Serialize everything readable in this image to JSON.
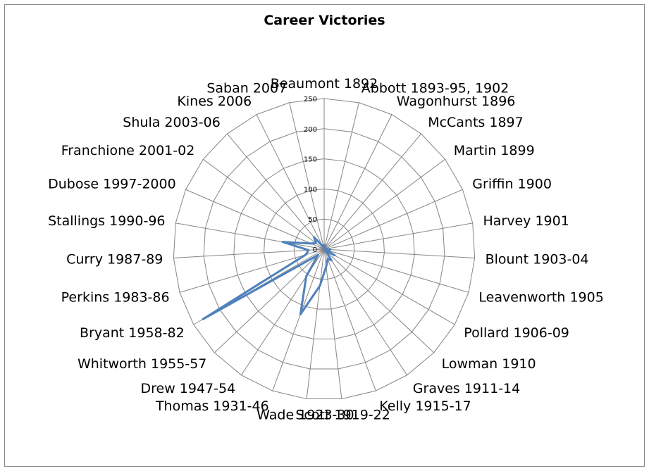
{
  "chart_data": {
    "type": "radar",
    "title": "Career Victories",
    "categories": [
      "Beaumont 1892",
      "Abbott 1893-95, 1902",
      "Wagonhurst 1896",
      "McCants 1897",
      "Martin 1899",
      "Griffin 1900",
      "Harvey 1901",
      "Blount 1903-04",
      "Leavenworth 1905",
      "Pollard 1906-09",
      "Lowman 1910",
      "Graves 1911-14",
      "Kelly 1915-17",
      "Scott 1919-22",
      "Wade 1923-30",
      "Thomas 1931-46",
      "Drew 1947-54",
      "Whitworth 1955-57",
      "Bryant 1958-82",
      "Perkins 1983-86",
      "Curry 1987-89",
      "Stallings 1990-96",
      "Dubose 1997-2000",
      "Franchione 2001-02",
      "Shula 2003-06",
      "Kines 2006",
      "Saban 2007"
    ],
    "series": [
      {
        "color": "#4f81bd",
        "values": [
          2,
          7,
          2,
          2,
          3,
          3,
          2,
          10,
          4,
          20,
          3,
          22,
          17,
          29,
          61,
          115,
          54,
          14,
          232,
          32,
          26,
          70,
          24,
          17,
          26,
          6,
          7
        ]
      }
    ],
    "rlim": [
      0,
      250
    ],
    "ticks": [
      "0",
      "50",
      "100",
      "150",
      "200",
      "250"
    ],
    "grid": true,
    "legend": "none"
  }
}
